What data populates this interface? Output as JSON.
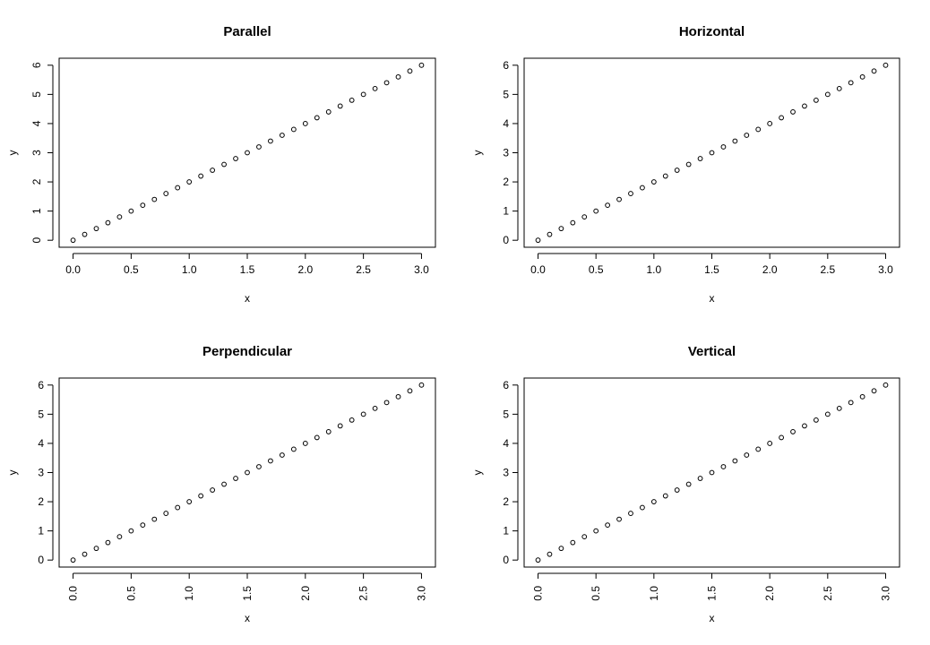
{
  "chart_data": [
    {
      "type": "scatter",
      "title": "Parallel",
      "xlabel": "x",
      "ylabel": "y",
      "label_orientation": "parallel",
      "xlim": [
        0,
        3
      ],
      "ylim": [
        0,
        6
      ],
      "x_ticks": [
        "0.0",
        "0.5",
        "1.0",
        "1.5",
        "2.0",
        "2.5",
        "3.0"
      ],
      "y_ticks": [
        "0",
        "1",
        "2",
        "3",
        "4",
        "5",
        "6"
      ],
      "grid": false,
      "x": [
        0.0,
        0.1,
        0.2,
        0.3,
        0.4,
        0.5,
        0.6,
        0.7,
        0.8,
        0.9,
        1.0,
        1.1,
        1.2,
        1.3,
        1.4,
        1.5,
        1.6,
        1.7,
        1.8,
        1.9,
        2.0,
        2.1,
        2.2,
        2.3,
        2.4,
        2.5,
        2.6,
        2.7,
        2.8,
        2.9,
        3.0
      ],
      "y": [
        0.0,
        0.2,
        0.4,
        0.6,
        0.8,
        1.0,
        1.2,
        1.4,
        1.6,
        1.8,
        2.0,
        2.2,
        2.4,
        2.6,
        2.8,
        3.0,
        3.2,
        3.4,
        3.6,
        3.8,
        4.0,
        4.2,
        4.4,
        4.6,
        4.8,
        5.0,
        5.2,
        5.4,
        5.6,
        5.8,
        6.0
      ]
    },
    {
      "type": "scatter",
      "title": "Horizontal",
      "xlabel": "x",
      "ylabel": "y",
      "label_orientation": "horizontal",
      "xlim": [
        0,
        3
      ],
      "ylim": [
        0,
        6
      ],
      "x_ticks": [
        "0.0",
        "0.5",
        "1.0",
        "1.5",
        "2.0",
        "2.5",
        "3.0"
      ],
      "y_ticks": [
        "0",
        "1",
        "2",
        "3",
        "4",
        "5",
        "6"
      ],
      "grid": false,
      "x": [
        0.0,
        0.1,
        0.2,
        0.3,
        0.4,
        0.5,
        0.6,
        0.7,
        0.8,
        0.9,
        1.0,
        1.1,
        1.2,
        1.3,
        1.4,
        1.5,
        1.6,
        1.7,
        1.8,
        1.9,
        2.0,
        2.1,
        2.2,
        2.3,
        2.4,
        2.5,
        2.6,
        2.7,
        2.8,
        2.9,
        3.0
      ],
      "y": [
        0.0,
        0.2,
        0.4,
        0.6,
        0.8,
        1.0,
        1.2,
        1.4,
        1.6,
        1.8,
        2.0,
        2.2,
        2.4,
        2.6,
        2.8,
        3.0,
        3.2,
        3.4,
        3.6,
        3.8,
        4.0,
        4.2,
        4.4,
        4.6,
        4.8,
        5.0,
        5.2,
        5.4,
        5.6,
        5.8,
        6.0
      ]
    },
    {
      "type": "scatter",
      "title": "Perpendicular",
      "xlabel": "x",
      "ylabel": "y",
      "label_orientation": "perpendicular",
      "xlim": [
        0,
        3
      ],
      "ylim": [
        0,
        6
      ],
      "x_ticks": [
        "0.0",
        "0.5",
        "1.0",
        "1.5",
        "2.0",
        "2.5",
        "3.0"
      ],
      "y_ticks": [
        "0",
        "1",
        "2",
        "3",
        "4",
        "5",
        "6"
      ],
      "grid": false,
      "x": [
        0.0,
        0.1,
        0.2,
        0.3,
        0.4,
        0.5,
        0.6,
        0.7,
        0.8,
        0.9,
        1.0,
        1.1,
        1.2,
        1.3,
        1.4,
        1.5,
        1.6,
        1.7,
        1.8,
        1.9,
        2.0,
        2.1,
        2.2,
        2.3,
        2.4,
        2.5,
        2.6,
        2.7,
        2.8,
        2.9,
        3.0
      ],
      "y": [
        0.0,
        0.2,
        0.4,
        0.6,
        0.8,
        1.0,
        1.2,
        1.4,
        1.6,
        1.8,
        2.0,
        2.2,
        2.4,
        2.6,
        2.8,
        3.0,
        3.2,
        3.4,
        3.6,
        3.8,
        4.0,
        4.2,
        4.4,
        4.6,
        4.8,
        5.0,
        5.2,
        5.4,
        5.6,
        5.8,
        6.0
      ]
    },
    {
      "type": "scatter",
      "title": "Vertical",
      "xlabel": "x",
      "ylabel": "y",
      "label_orientation": "vertical",
      "xlim": [
        0,
        3
      ],
      "ylim": [
        0,
        6
      ],
      "x_ticks": [
        "0.0",
        "0.5",
        "1.0",
        "1.5",
        "2.0",
        "2.5",
        "3.0"
      ],
      "y_ticks": [
        "0",
        "1",
        "2",
        "3",
        "4",
        "5",
        "6"
      ],
      "grid": false,
      "x": [
        0.0,
        0.1,
        0.2,
        0.3,
        0.4,
        0.5,
        0.6,
        0.7,
        0.8,
        0.9,
        1.0,
        1.1,
        1.2,
        1.3,
        1.4,
        1.5,
        1.6,
        1.7,
        1.8,
        1.9,
        2.0,
        2.1,
        2.2,
        2.3,
        2.4,
        2.5,
        2.6,
        2.7,
        2.8,
        2.9,
        3.0
      ],
      "y": [
        0.0,
        0.2,
        0.4,
        0.6,
        0.8,
        1.0,
        1.2,
        1.4,
        1.6,
        1.8,
        2.0,
        2.2,
        2.4,
        2.6,
        2.8,
        3.0,
        3.2,
        3.4,
        3.6,
        3.8,
        4.0,
        4.2,
        4.4,
        4.6,
        4.8,
        5.0,
        5.2,
        5.4,
        5.6,
        5.8,
        6.0
      ]
    }
  ]
}
